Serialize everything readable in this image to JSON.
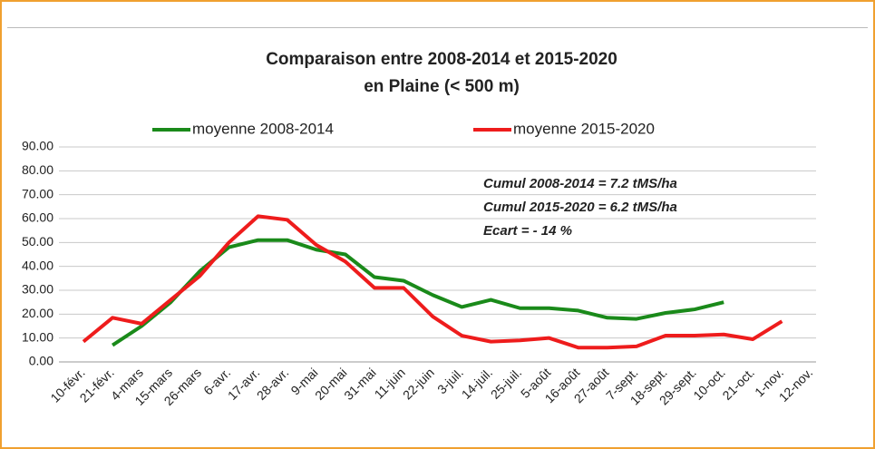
{
  "chart_data": {
    "type": "line",
    "title": [
      "Comparaison entre 2008-2014 et 2015-2020",
      "en Plaine (< 500 m)"
    ],
    "annotations": [
      "Cumul 2008-2014 = 7.2 tMS/ha",
      "Cumul 2015-2020 = 6.2 tMS/ha",
      "Ecart = - 14 %"
    ],
    "categories": [
      "10-févr.",
      "21-févr.",
      "4-mars",
      "15-mars",
      "26-mars",
      "6-avr.",
      "17-avr.",
      "28-avr.",
      "9-mai",
      "20-mai",
      "31-mai",
      "11-juin",
      "22-juin",
      "3-juil.",
      "14-juil.",
      "25-juil.",
      "5-août",
      "16-août",
      "27-août",
      "7-sept.",
      "18-sept.",
      "29-sept.",
      "10-oct.",
      "21-oct.",
      "1-nov.",
      "12-nov."
    ],
    "series": [
      {
        "name": "moyenne 2008-2014",
        "color": "#1a8a1a",
        "values": [
          null,
          7,
          15,
          25,
          38,
          48,
          51,
          51,
          47,
          45,
          35.5,
          34,
          28,
          23,
          26,
          22.5,
          22.5,
          21.5,
          18.5,
          18,
          20.5,
          22,
          25,
          null,
          null,
          null
        ]
      },
      {
        "name": "moyenne 2015-2020",
        "color": "#ee1c1c",
        "values": [
          8.5,
          18.5,
          16,
          26,
          36,
          50,
          61,
          59.5,
          49,
          42,
          31,
          31,
          19,
          11,
          8.5,
          9,
          10,
          6,
          6,
          6.5,
          11,
          11,
          11.5,
          9.5,
          17,
          null
        ]
      }
    ],
    "ylim": [
      0,
      90
    ],
    "yticks": [
      {
        "value": 0,
        "label": "0.00"
      },
      {
        "value": 10,
        "label": "10.00"
      },
      {
        "value": 20,
        "label": "20.00"
      },
      {
        "value": 30,
        "label": "30.00"
      },
      {
        "value": 40,
        "label": "40.00"
      },
      {
        "value": 50,
        "label": "50.00"
      },
      {
        "value": 60,
        "label": "60.00"
      },
      {
        "value": 70,
        "label": "70.00"
      },
      {
        "value": 80,
        "label": "80.00"
      },
      {
        "value": 90,
        "label": "90.00"
      }
    ],
    "grid": true,
    "legend": "top"
  }
}
